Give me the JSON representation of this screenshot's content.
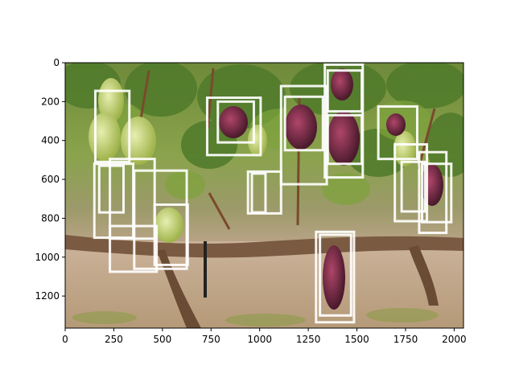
{
  "chart_data": {
    "type": "image-with-bounding-boxes",
    "title": "",
    "xlabel": "",
    "ylabel": "",
    "image": {
      "width": 2048,
      "height": 1365,
      "subject": "grape clusters on vine"
    },
    "xlim": [
      0,
      2048
    ],
    "ylim": [
      1365,
      0
    ],
    "x_ticks": [
      0,
      250,
      500,
      750,
      1000,
      1250,
      1500,
      1750,
      2000
    ],
    "y_ticks": [
      0,
      200,
      400,
      600,
      800,
      1000,
      1200
    ],
    "box_color": "#ffffff",
    "boxes": [
      {
        "x0": 155,
        "y0": 145,
        "x1": 330,
        "y1": 510
      },
      {
        "x0": 150,
        "y0": 520,
        "x1": 350,
        "y1": 900
      },
      {
        "x0": 175,
        "y0": 530,
        "x1": 300,
        "y1": 770
      },
      {
        "x0": 230,
        "y0": 495,
        "x1": 460,
        "y1": 905
      },
      {
        "x0": 230,
        "y0": 840,
        "x1": 470,
        "y1": 1075
      },
      {
        "x0": 355,
        "y0": 555,
        "x1": 625,
        "y1": 1060
      },
      {
        "x0": 460,
        "y0": 730,
        "x1": 630,
        "y1": 1040
      },
      {
        "x0": 730,
        "y0": 180,
        "x1": 1005,
        "y1": 475
      },
      {
        "x0": 785,
        "y0": 200,
        "x1": 970,
        "y1": 410
      },
      {
        "x0": 940,
        "y0": 560,
        "x1": 1110,
        "y1": 775
      },
      {
        "x0": 960,
        "y0": 570,
        "x1": 1030,
        "y1": 770
      },
      {
        "x0": 1110,
        "y0": 120,
        "x1": 1345,
        "y1": 625
      },
      {
        "x0": 1130,
        "y0": 175,
        "x1": 1325,
        "y1": 450
      },
      {
        "x0": 1335,
        "y0": 10,
        "x1": 1530,
        "y1": 590
      },
      {
        "x0": 1350,
        "y0": 40,
        "x1": 1525,
        "y1": 250
      },
      {
        "x0": 1350,
        "y0": 270,
        "x1": 1525,
        "y1": 520
      },
      {
        "x0": 1610,
        "y0": 225,
        "x1": 1810,
        "y1": 495
      },
      {
        "x0": 1695,
        "y0": 420,
        "x1": 1860,
        "y1": 815
      },
      {
        "x0": 1730,
        "y0": 510,
        "x1": 1850,
        "y1": 765
      },
      {
        "x0": 1820,
        "y0": 460,
        "x1": 1960,
        "y1": 875
      },
      {
        "x0": 1835,
        "y0": 520,
        "x1": 1985,
        "y1": 820
      },
      {
        "x0": 1290,
        "y0": 870,
        "x1": 1485,
        "y1": 1335
      },
      {
        "x0": 1310,
        "y0": 885,
        "x1": 1470,
        "y1": 1300
      }
    ]
  }
}
